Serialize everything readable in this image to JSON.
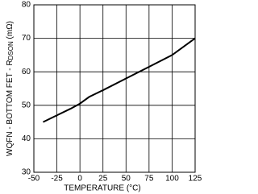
{
  "chart_data": {
    "type": "line",
    "xlabel": "TEMPERATURE (°C)",
    "ylabel": [
      "WQFN - BOTTOM FET - R",
      "DSON",
      " (mΩ)"
    ],
    "x": [
      -40,
      -25,
      -10,
      0,
      10,
      25,
      50,
      75,
      100,
      125
    ],
    "series": [
      {
        "color": "#000000",
        "values": [
          45,
          47,
          49,
          50.5,
          52.5,
          54.5,
          58,
          61.5,
          65,
          70
        ]
      }
    ],
    "xlim": [
      -50,
      125
    ],
    "xticks": [
      -50,
      -25,
      0,
      25,
      50,
      75,
      100,
      125
    ],
    "ylim": [
      30,
      80
    ],
    "yticks": [
      30,
      40,
      50,
      60,
      70,
      80
    ],
    "grid": true
  }
}
